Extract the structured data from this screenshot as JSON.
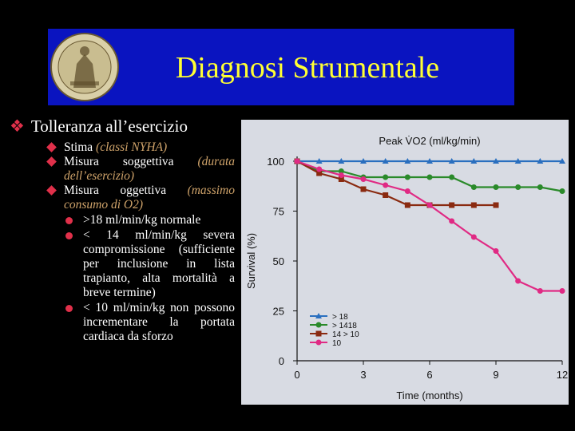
{
  "title": "Diagnosi Strumentale",
  "main_bullet": "Tolleranza all’esercizio",
  "items": [
    {
      "plain": "Stima ",
      "emph": "(classi NYHA)"
    },
    {
      "plain": "Misura soggettiva ",
      "emph": "(durata dell’esercizio)"
    },
    {
      "plain": "Misura oggettiva ",
      "emph": "(massimo consumo di O2)"
    }
  ],
  "subitems": [
    ">18 ml/min/kg normale",
    "< 14 ml/min/kg severa compromissione (sufficiente per inclusione in lista trapianto, alta mortalità a breve termine)",
    "< 10 ml/min/kg non possono incrementare la portata cardiaca da sforzo"
  ],
  "colors": {
    "title": "#ffff33",
    "title_box": "#0a14c0",
    "bullet": "#e0304a",
    "emphasis": "#cfa36a"
  },
  "chart_data": {
    "type": "line",
    "title": "Peak V̇O2 (ml/kg/min)",
    "xlabel": "Time (months)",
    "ylabel": "Survival (%)",
    "xlim": [
      0,
      12
    ],
    "ylim": [
      0,
      100
    ],
    "xticks": [
      "0",
      "3",
      "6",
      "9",
      "12"
    ],
    "yticks": [
      "0",
      "25",
      "50",
      "75",
      "100"
    ],
    "grid": false,
    "legend_position": "bottom-left",
    "series": [
      {
        "name": "> 18",
        "color": "#2a6fbf",
        "marker": "triangle",
        "x": [
          0,
          1,
          2,
          3,
          4,
          5,
          6,
          7,
          8,
          9,
          10,
          11,
          12
        ],
        "y": [
          100,
          100,
          100,
          100,
          100,
          100,
          100,
          100,
          100,
          100,
          100,
          100,
          100
        ]
      },
      {
        "name": "> 1418",
        "color": "#2a8a2a",
        "marker": "circle",
        "x": [
          0,
          1,
          2,
          3,
          4,
          5,
          6,
          7,
          8,
          9,
          10,
          11,
          12
        ],
        "y": [
          100,
          95,
          95,
          92,
          92,
          92,
          92,
          92,
          87,
          87,
          87,
          87,
          85
        ]
      },
      {
        "name": "14 > 10",
        "color": "#8a2a10",
        "marker": "square",
        "x": [
          0,
          1,
          2,
          3,
          4,
          5,
          6,
          7,
          8,
          9
        ],
        "y": [
          100,
          94,
          91,
          86,
          83,
          78,
          78,
          78,
          78,
          78
        ]
      },
      {
        "name": "10",
        "color": "#e02a84",
        "marker": "circle",
        "x": [
          0,
          1,
          2,
          3,
          4,
          5,
          6,
          7,
          8,
          9,
          10,
          11,
          12
        ],
        "y": [
          100,
          96,
          93,
          91,
          88,
          85,
          78,
          70,
          62,
          55,
          40,
          35,
          35
        ]
      }
    ]
  }
}
